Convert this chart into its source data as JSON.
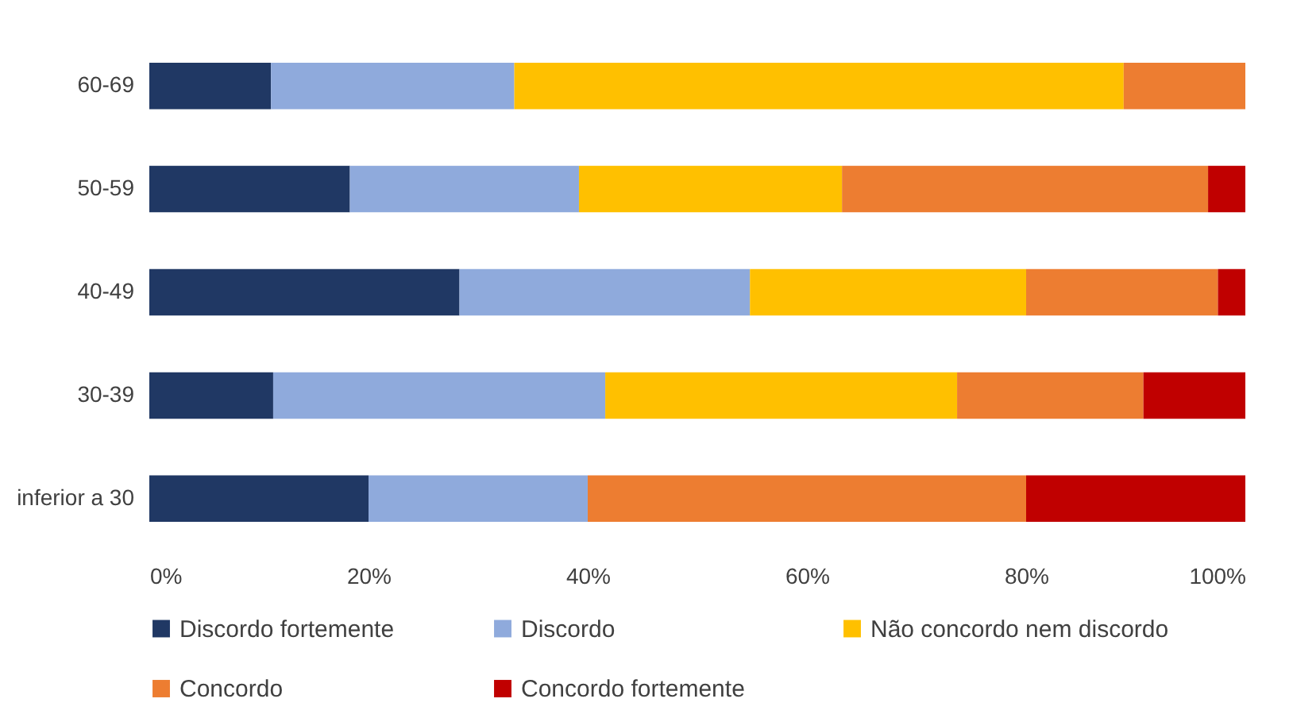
{
  "chart_data": {
    "type": "bar",
    "orientation": "horizontal",
    "stacked": true,
    "categories": [
      "60-69",
      "50-59",
      "40-49",
      "30-39",
      "inferior a 30"
    ],
    "series": [
      {
        "name": "Discordo fortemente",
        "color": "#203864",
        "values": [
          11.1,
          18.3,
          28.3,
          11.3,
          20
        ]
      },
      {
        "name": "Discordo",
        "color": "#8faadc",
        "values": [
          22.2,
          20.9,
          26.5,
          30.3,
          20
        ]
      },
      {
        "name": "Não concordo nem discordo",
        "color": "#ffc000",
        "values": [
          55.6,
          24.0,
          25.2,
          32.1,
          0
        ]
      },
      {
        "name": "Concordo",
        "color": "#ed7d31",
        "values": [
          11.1,
          33.4,
          17.5,
          17.0,
          40
        ]
      },
      {
        "name": "Concordo fortemente",
        "color": "#c00000",
        "values": [
          0,
          3.4,
          2.5,
          9.3,
          20
        ]
      }
    ],
    "xlim": [
      0,
      100
    ],
    "xticks": [
      {
        "value": 0,
        "label": "0%"
      },
      {
        "value": 20,
        "label": "20%"
      },
      {
        "value": 40,
        "label": "40%"
      },
      {
        "value": 60,
        "label": "60%"
      },
      {
        "value": 80,
        "label": "80%"
      },
      {
        "value": 100,
        "label": "100%"
      }
    ],
    "grid": false,
    "legend": "bottom"
  }
}
